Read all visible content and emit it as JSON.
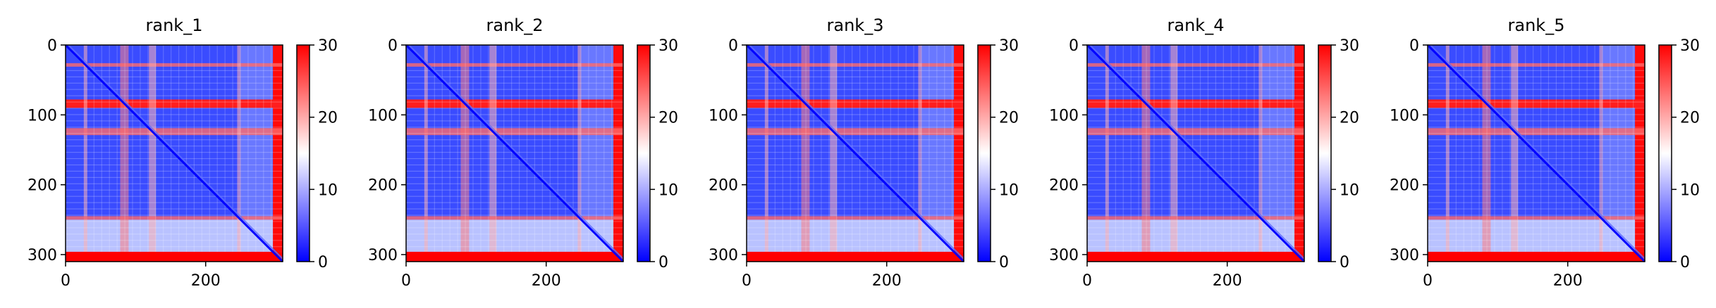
{
  "chart_data": [
    {
      "type": "heatmap",
      "title": "rank_1",
      "x_ticks": [
        "0",
        "200"
      ],
      "y_ticks": [
        "0",
        "100",
        "200",
        "300"
      ],
      "cbar_ticks": [
        "0",
        "10",
        "20",
        "30"
      ],
      "xlim": [
        0,
        310
      ],
      "ylim": [
        310,
        0
      ],
      "vmin": 0,
      "vmax": 30,
      "colormap": "bwr"
    },
    {
      "type": "heatmap",
      "title": "rank_2",
      "x_ticks": [
        "0",
        "200"
      ],
      "y_ticks": [
        "0",
        "100",
        "200",
        "300"
      ],
      "cbar_ticks": [
        "0",
        "10",
        "20",
        "30"
      ],
      "xlim": [
        0,
        310
      ],
      "ylim": [
        310,
        0
      ],
      "vmin": 0,
      "vmax": 30,
      "colormap": "bwr"
    },
    {
      "type": "heatmap",
      "title": "rank_3",
      "x_ticks": [
        "0",
        "200"
      ],
      "y_ticks": [
        "0",
        "100",
        "200",
        "300"
      ],
      "cbar_ticks": [
        "0",
        "10",
        "20",
        "30"
      ],
      "xlim": [
        0,
        310
      ],
      "ylim": [
        310,
        0
      ],
      "vmin": 0,
      "vmax": 30,
      "colormap": "bwr"
    },
    {
      "type": "heatmap",
      "title": "rank_4",
      "x_ticks": [
        "0",
        "200"
      ],
      "y_ticks": [
        "0",
        "100",
        "200",
        "300"
      ],
      "cbar_ticks": [
        "0",
        "10",
        "20",
        "30"
      ],
      "xlim": [
        0,
        310
      ],
      "ylim": [
        310,
        0
      ],
      "vmin": 0,
      "vmax": 30,
      "colormap": "bwr"
    },
    {
      "type": "heatmap",
      "title": "rank_5",
      "x_ticks": [
        "0",
        "200"
      ],
      "y_ticks": [
        "0",
        "100",
        "200",
        "300"
      ],
      "cbar_ticks": [
        "0",
        "10",
        "20",
        "30"
      ],
      "xlim": [
        0,
        310
      ],
      "ylim": [
        310,
        0
      ],
      "vmin": 0,
      "vmax": 30,
      "colormap": "bwr"
    }
  ],
  "colors": {
    "low": "#0000ff",
    "mid": "#ffffff",
    "high": "#ff0000"
  }
}
